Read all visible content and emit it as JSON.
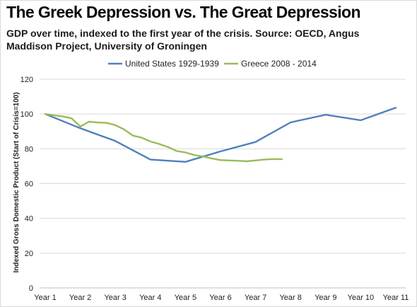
{
  "chart_data": {
    "type": "line",
    "title": "The Greek Depression vs. The Great Depression",
    "subtitle": "GDP over time, indexed to the first year of the crisis. Source: OECD, Angus Maddison Project, University of Groningen",
    "ylabel": "Indexed Gross Domestic Product (Start of Crisis=100)",
    "xlabel": "",
    "categories": [
      "Year 1",
      "Year 2",
      "Year 3",
      "Year 4",
      "Year 5",
      "Year 6",
      "Year 7",
      "Year 8",
      "Year 9",
      "Year 10",
      "Year 11"
    ],
    "ylim": [
      0,
      120
    ],
    "yticks": [
      0,
      20,
      40,
      60,
      80,
      100,
      120
    ],
    "grid": true,
    "legend_position": "top",
    "series": [
      {
        "name": "United States 1929-1939",
        "color": "#4f81bd",
        "x": [
          1,
          2,
          3,
          4,
          5,
          6,
          7,
          8,
          9,
          10,
          11
        ],
        "values": [
          100,
          91.8,
          84.5,
          73.8,
          72.5,
          78.5,
          83.9,
          95.2,
          99.6,
          96.4,
          103.6
        ]
      },
      {
        "name": "Greece 2008 - 2014",
        "color": "#9bbb59",
        "x": [
          1,
          1.25,
          1.5,
          1.75,
          2,
          2.25,
          2.5,
          2.75,
          3,
          3.25,
          3.5,
          3.75,
          4,
          4.25,
          4.5,
          4.75,
          5,
          5.25,
          5.5,
          5.75,
          6,
          6.25,
          6.5,
          6.75,
          7,
          7.25,
          7.5,
          7.75
        ],
        "values": [
          100,
          99.2,
          98.6,
          97.5,
          92.8,
          95.6,
          95.1,
          94.9,
          93.6,
          91.1,
          87.6,
          86.4,
          84.2,
          82.8,
          81,
          78.7,
          77.9,
          76.4,
          75.6,
          74.5,
          73.5,
          73.3,
          73.1,
          72.8,
          73.3,
          73.8,
          74.1,
          74
        ]
      }
    ]
  }
}
